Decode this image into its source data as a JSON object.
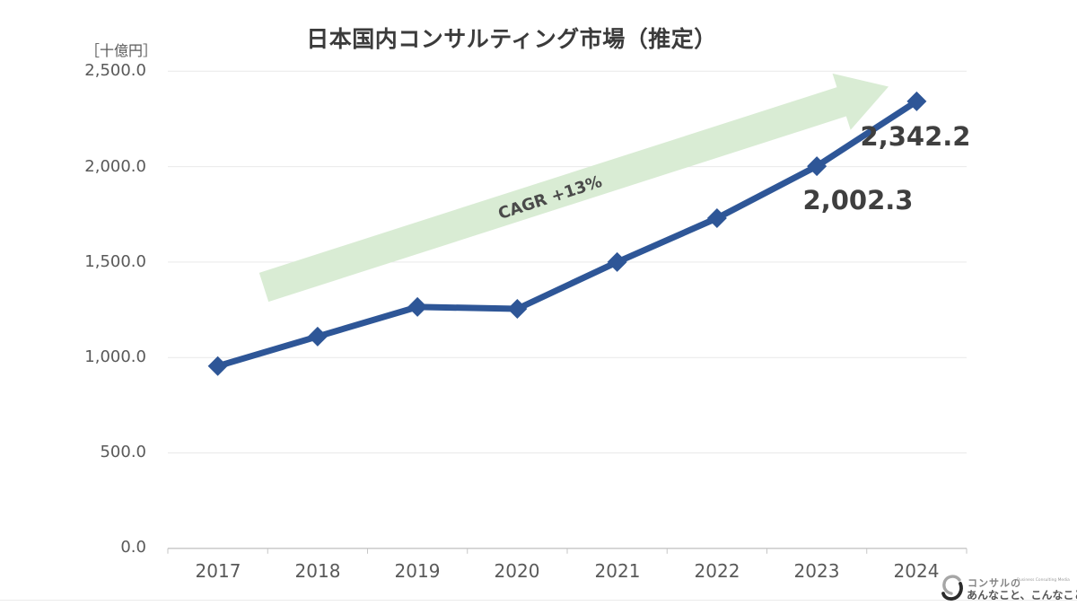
{
  "chart": {
    "title": "日本国内コンサルティング市場（推定）",
    "y_unit_label": "［十億円］"
  },
  "chart_data": {
    "type": "line",
    "title": "日本国内コンサルティング市場（推定）",
    "categories": [
      "2017",
      "2018",
      "2019",
      "2020",
      "2021",
      "2022",
      "2023",
      "2024"
    ],
    "values": [
      955,
      1110,
      1265,
      1255,
      1500,
      1730,
      2002.3,
      2342.2
    ],
    "ylabel": "十億円",
    "ylim": [
      0,
      2500
    ],
    "ytick_interval": 500,
    "ytick_labels": [
      "0.0",
      "500.0",
      "1,000.0",
      "1,500.0",
      "2,000.0",
      "2,500.0"
    ],
    "grid": true,
    "legend": "none",
    "marker_style": "diamond",
    "data_labels": [
      {
        "category": "2023",
        "text": "2,002.3"
      },
      {
        "category": "2024",
        "text": "2,342.2"
      }
    ],
    "annotation": {
      "text": "CAGR +13%",
      "shape": "up-right-arrow"
    }
  },
  "labels": {
    "label_2023": "2,002.3",
    "label_2024": "2,342.2",
    "cagr": "CAGR +13%"
  },
  "logo": {
    "brand_top": "コンサルの",
    "brand_tagline": "Business Consulting Media",
    "brand_bottom": "あんなこと、こんなこと"
  },
  "colors": {
    "line": "#2e5697",
    "arrow": "#d9ecd4",
    "grid": "#e9e9e9",
    "axis": "#c6c6c6",
    "title_text": "#3b3b3b",
    "tick_text": "#595959",
    "data_label_text": "#3f3f3f"
  }
}
